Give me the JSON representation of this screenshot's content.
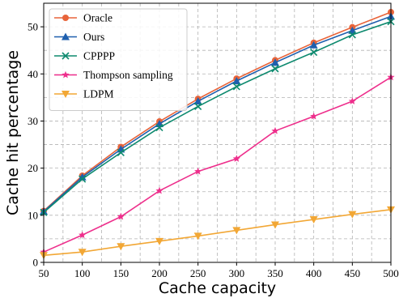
{
  "chart_data": {
    "type": "line",
    "xlabel": "Cache capacity",
    "ylabel": "Cache hit percentage",
    "x": [
      50,
      100,
      150,
      200,
      250,
      300,
      350,
      400,
      450,
      500
    ],
    "xlim": [
      50,
      500
    ],
    "ylim": [
      0,
      55
    ],
    "xticks": [
      50,
      100,
      150,
      200,
      250,
      300,
      350,
      400,
      450,
      500
    ],
    "yticks": [
      0,
      10,
      20,
      30,
      40,
      50
    ],
    "grid": true,
    "legend_position": "top-left",
    "series": [
      {
        "name": "Oracle",
        "color": "#e8643a",
        "marker": "circle",
        "values": [
          10.9,
          18.4,
          24.5,
          29.9,
          34.7,
          39.0,
          42.9,
          46.6,
          49.9,
          53.1
        ]
      },
      {
        "name": "Ours",
        "color": "#1f5fae",
        "marker": "triangle-up",
        "values": [
          10.8,
          18.1,
          24.0,
          29.4,
          34.2,
          38.5,
          42.4,
          46.1,
          49.2,
          52.2
        ]
      },
      {
        "name": "CPPPP",
        "color": "#0e8a6f",
        "marker": "x",
        "values": [
          10.6,
          17.7,
          23.3,
          28.6,
          33.1,
          37.3,
          41.1,
          44.6,
          48.3,
          51.1
        ]
      },
      {
        "name": "Thompson sampling",
        "color": "#ee2f8c",
        "marker": "star",
        "values": [
          2.2,
          5.8,
          9.7,
          15.2,
          19.3,
          22.0,
          27.9,
          31.0,
          34.2,
          39.3
        ]
      },
      {
        "name": "LDPM",
        "color": "#f2a735",
        "marker": "triangle-down",
        "values": [
          1.5,
          2.2,
          3.4,
          4.5,
          5.6,
          6.8,
          8.0,
          9.1,
          10.2,
          11.2
        ]
      }
    ]
  }
}
